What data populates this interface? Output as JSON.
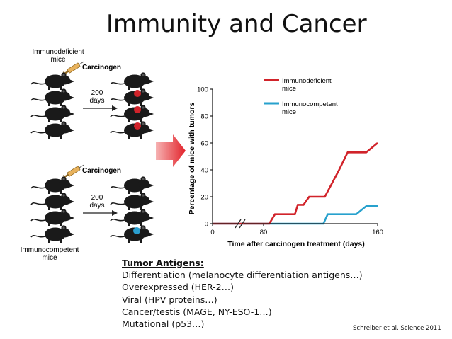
{
  "title": "Immunity and Cancer",
  "diagram": {
    "top_group_label": [
      "Immunodeficient",
      "mice"
    ],
    "bottom_group_label": [
      "Immunocompetent",
      "mice"
    ],
    "carcinogen_label": "Carcinogen",
    "duration_label": [
      "200",
      "days"
    ],
    "tumor_colors": {
      "immunodeficient": "#d1232a",
      "immunocompetent": "#2a9fd0"
    }
  },
  "chart_data": {
    "type": "line",
    "xlabel": "Time after carcinogen treatment (days)",
    "ylabel": "Percentage of mice with tumors",
    "xlim": [
      0,
      160
    ],
    "ylim": [
      0,
      100
    ],
    "x_ticks": [
      "0",
      "80",
      "160"
    ],
    "y_ticks": [
      "0",
      "20",
      "40",
      "60",
      "80",
      "100"
    ],
    "axis_break": true,
    "legend_position": "top-right",
    "series": [
      {
        "name": "Immunodeficient mice",
        "color": "#d1232a",
        "points": [
          [
            0,
            0
          ],
          [
            84,
            0
          ],
          [
            88,
            7
          ],
          [
            102,
            7
          ],
          [
            104,
            14
          ],
          [
            108,
            14
          ],
          [
            112,
            20
          ],
          [
            123,
            20
          ],
          [
            133,
            40
          ],
          [
            139,
            53
          ],
          [
            152,
            53
          ],
          [
            160,
            60
          ]
        ]
      },
      {
        "name": "Immunocompetent mice",
        "color": "#27a1cd",
        "points": [
          [
            0,
            0
          ],
          [
            122,
            0
          ],
          [
            125,
            7
          ],
          [
            145,
            7
          ],
          [
            152,
            13
          ],
          [
            160,
            13
          ]
        ]
      }
    ]
  },
  "antigens": {
    "heading": "Tumor Antigens:",
    "items": [
      "Differentiation (melanocyte differentiation antigens…)",
      "Overexpressed (HER-2…)",
      "Viral (HPV proteins…)",
      "Cancer/testis (MAGE, NY-ESO-1…)",
      "Mutational (p53…)"
    ]
  },
  "citation": "Schreiber et al.  Science 2011"
}
